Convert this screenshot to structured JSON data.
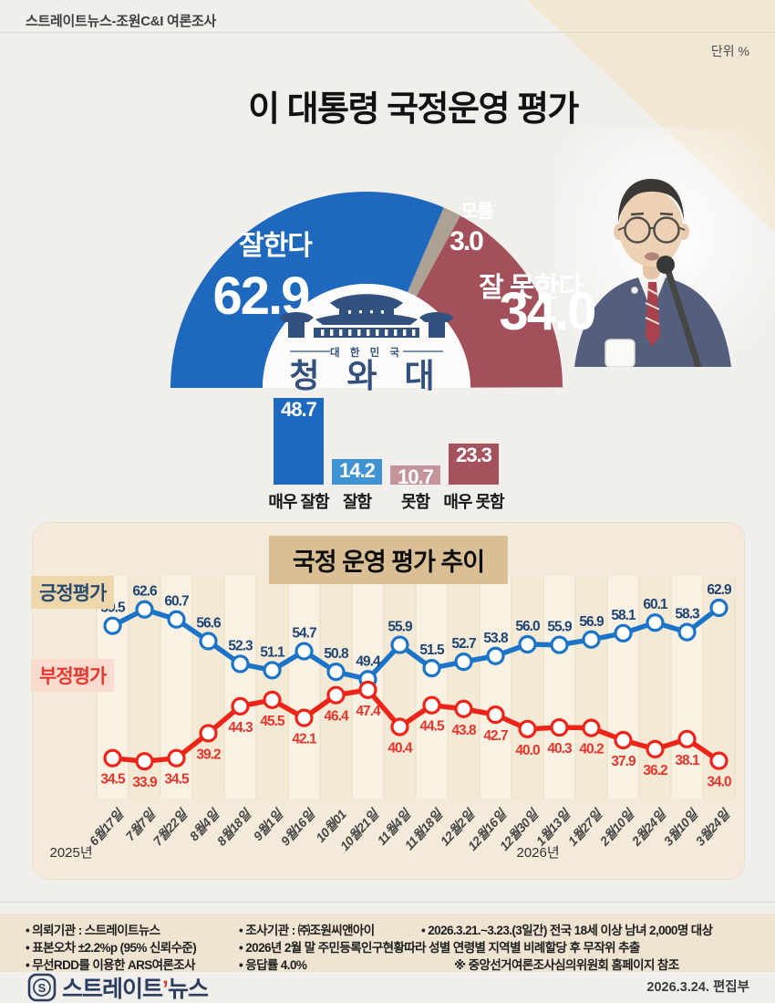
{
  "header": {
    "source_label": "스트레이트뉴스-조원C&I 여론조사",
    "unit_label": "단위 %"
  },
  "title": "이 대통령 국정운영 평가",
  "colors": {
    "approve_blue": "#1e68be",
    "dontknow_gray": "#aba293",
    "disapprove_red": "#a3505a",
    "line_blue": "#1b74c8",
    "line_red": "#ee2419",
    "label_navy": "#1d4475",
    "label_red": "#e3362d",
    "cheongwadae_navy": "#33517e"
  },
  "chart_data": [
    {
      "type": "pie",
      "subtype": "half_donut",
      "title": "이 대통령 국정운영 평가",
      "slices": [
        {
          "label": "잘한다",
          "value": 62.9,
          "color": "#1e68be"
        },
        {
          "label": "모름",
          "value": 3.0,
          "color": "#aba293"
        },
        {
          "label": "잘 못한다",
          "value": 34.0,
          "color": "#a3505a"
        }
      ],
      "center_logo": {
        "country": "대 한 민 국",
        "name": "청 와 대"
      }
    },
    {
      "type": "bar",
      "categories": [
        "매우 잘함",
        "잘함",
        "못함",
        "매우 못함"
      ],
      "values": [
        48.7,
        14.2,
        10.7,
        23.3
      ],
      "colors": [
        "#1b6ac0",
        "#3f93d2",
        "#c4949b",
        "#a4525c"
      ]
    },
    {
      "type": "line",
      "title": "국정 운영 평가 추이",
      "categories": [
        "6월17일",
        "7월7일",
        "7월22일",
        "8월4일",
        "8월18일",
        "9월1일",
        "9월16일",
        "10월01",
        "10월21일",
        "11월4일",
        "11월18일",
        "12월2일",
        "12월16일",
        "12월30일",
        "1월13일",
        "1월27일",
        "2월10일",
        "2월24일",
        "3월10일",
        "3월24일"
      ],
      "series": [
        {
          "name": "긍정평가",
          "color": "#1b74c8",
          "label_color": "#1d4475",
          "values": [
            59.5,
            62.6,
            60.7,
            56.6,
            52.3,
            51.1,
            54.7,
            50.8,
            49.4,
            55.9,
            51.5,
            52.7,
            53.8,
            56.0,
            55.9,
            56.9,
            58.1,
            60.1,
            58.3,
            62.9
          ]
        },
        {
          "name": "부정평가",
          "color": "#ee2419",
          "label_color": "#e3362d",
          "values": [
            34.5,
            33.9,
            34.5,
            39.2,
            44.3,
            45.5,
            42.1,
            46.4,
            47.4,
            40.4,
            44.5,
            43.8,
            42.7,
            40.0,
            40.3,
            40.2,
            37.9,
            36.2,
            38.1,
            34.0
          ]
        }
      ],
      "year_labels": [
        {
          "text": "2025년",
          "index": 0
        },
        {
          "text": "2026년",
          "index": 14
        }
      ],
      "ylim": [
        28,
        66
      ],
      "grid": "vertical-stripes",
      "legend_position": "left-inline"
    }
  ],
  "survey_notes": {
    "rows": [
      [
        "• 의뢰기관 : 스트레이트뉴스",
        "• 조사기관 : ㈜조원씨앤아이",
        "• 2026.3.21.~3.23.(3일간) 전국 18세 이상 남녀 2,000명 대상"
      ],
      [
        "• 표본오차 ±2.2%p (95% 신뢰수준)",
        "• 2026년 2월 말 주민등록인구현황따라 성별 연령별 지역별 비례할당 후 무작위 추출"
      ],
      [
        "• 무선RDD를 이용한 ARS여론조사",
        "• 응답률 4.0%",
        "※ 중앙선거여론조사심의위원회 홈페이지 참조"
      ]
    ]
  },
  "branding": {
    "logo_prefix": "스트레이트",
    "logo_apostrophe": "’",
    "logo_suffix": "뉴스",
    "edit_date": "2026.3.24.  편집부"
  }
}
